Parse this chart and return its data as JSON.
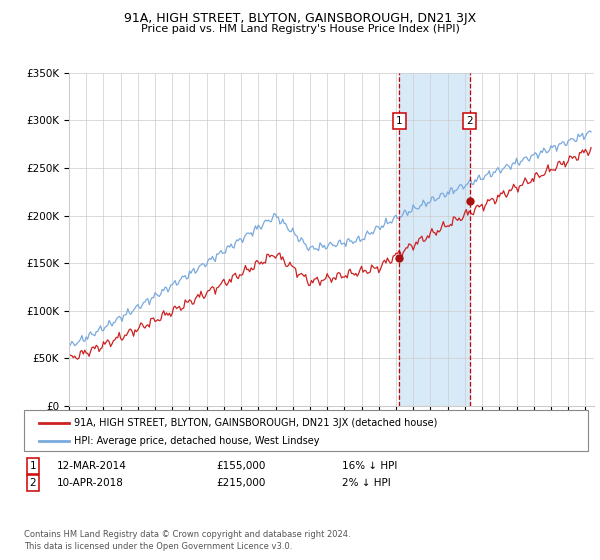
{
  "title": "91A, HIGH STREET, BLYTON, GAINSBOROUGH, DN21 3JX",
  "subtitle": "Price paid vs. HM Land Registry's House Price Index (HPI)",
  "ylim": [
    0,
    350000
  ],
  "yticks": [
    0,
    50000,
    100000,
    150000,
    200000,
    250000,
    300000,
    350000
  ],
  "ytick_labels": [
    "£0",
    "£50K",
    "£100K",
    "£150K",
    "£200K",
    "£250K",
    "£300K",
    "£350K"
  ],
  "xlim_start": 1995.0,
  "xlim_end": 2025.5,
  "hpi_color": "#7aaadd",
  "price_color": "#cc2222",
  "sale1_date": 2014.19,
  "sale1_price": 155000,
  "sale2_date": 2018.27,
  "sale2_price": 215000,
  "shade_color": "#d8eaf8",
  "vline_color": "#cc0000",
  "legend_label_price": "91A, HIGH STREET, BLYTON, GAINSBOROUGH, DN21 3JX (detached house)",
  "legend_label_hpi": "HPI: Average price, detached house, West Lindsey",
  "table_row1": [
    "1",
    "12-MAR-2014",
    "£155,000",
    "16% ↓ HPI"
  ],
  "table_row2": [
    "2",
    "10-APR-2018",
    "£215,000",
    "2% ↓ HPI"
  ],
  "footer1": "Contains HM Land Registry data © Crown copyright and database right 2024.",
  "footer2": "This data is licensed under the Open Government Licence v3.0.",
  "background_color": "#ffffff",
  "grid_color": "#cccccc"
}
